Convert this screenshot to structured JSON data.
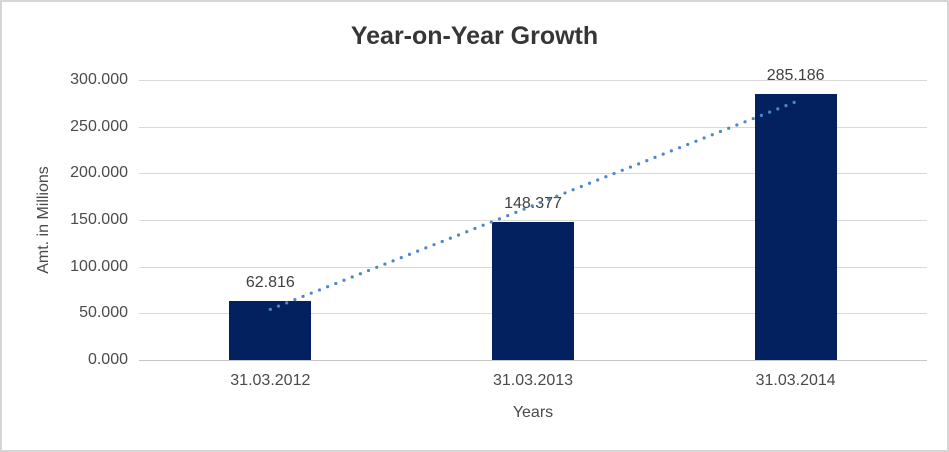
{
  "chart_data": {
    "type": "bar",
    "title": "Year-on-Year Growth",
    "xlabel": "Years",
    "ylabel": "Amt. in Millions",
    "categories": [
      "31.03.2012",
      "31.03.2013",
      "31.03.2014"
    ],
    "values": [
      62.816,
      148.377,
      285.186
    ],
    "data_labels": [
      "62.816",
      "148.377",
      "285.186"
    ],
    "ylim": [
      0,
      300
    ],
    "ytick_step": 50,
    "ytick_labels": [
      "0.000",
      "50.000",
      "100.000",
      "150.000",
      "200.000",
      "250.000",
      "300.000"
    ],
    "grid": true,
    "legend": "none",
    "trendline": {
      "type": "linear",
      "style": "dotted"
    },
    "colors": {
      "bar": "#04215f",
      "trendline": "#4e87c9",
      "gridline": "#d9d9d9",
      "axis_line": "#c6c6c6",
      "title_text": "#363636",
      "label_text": "#404040",
      "tick_text": "#4a4a4a",
      "frame_border": "#d5d5d5"
    }
  }
}
